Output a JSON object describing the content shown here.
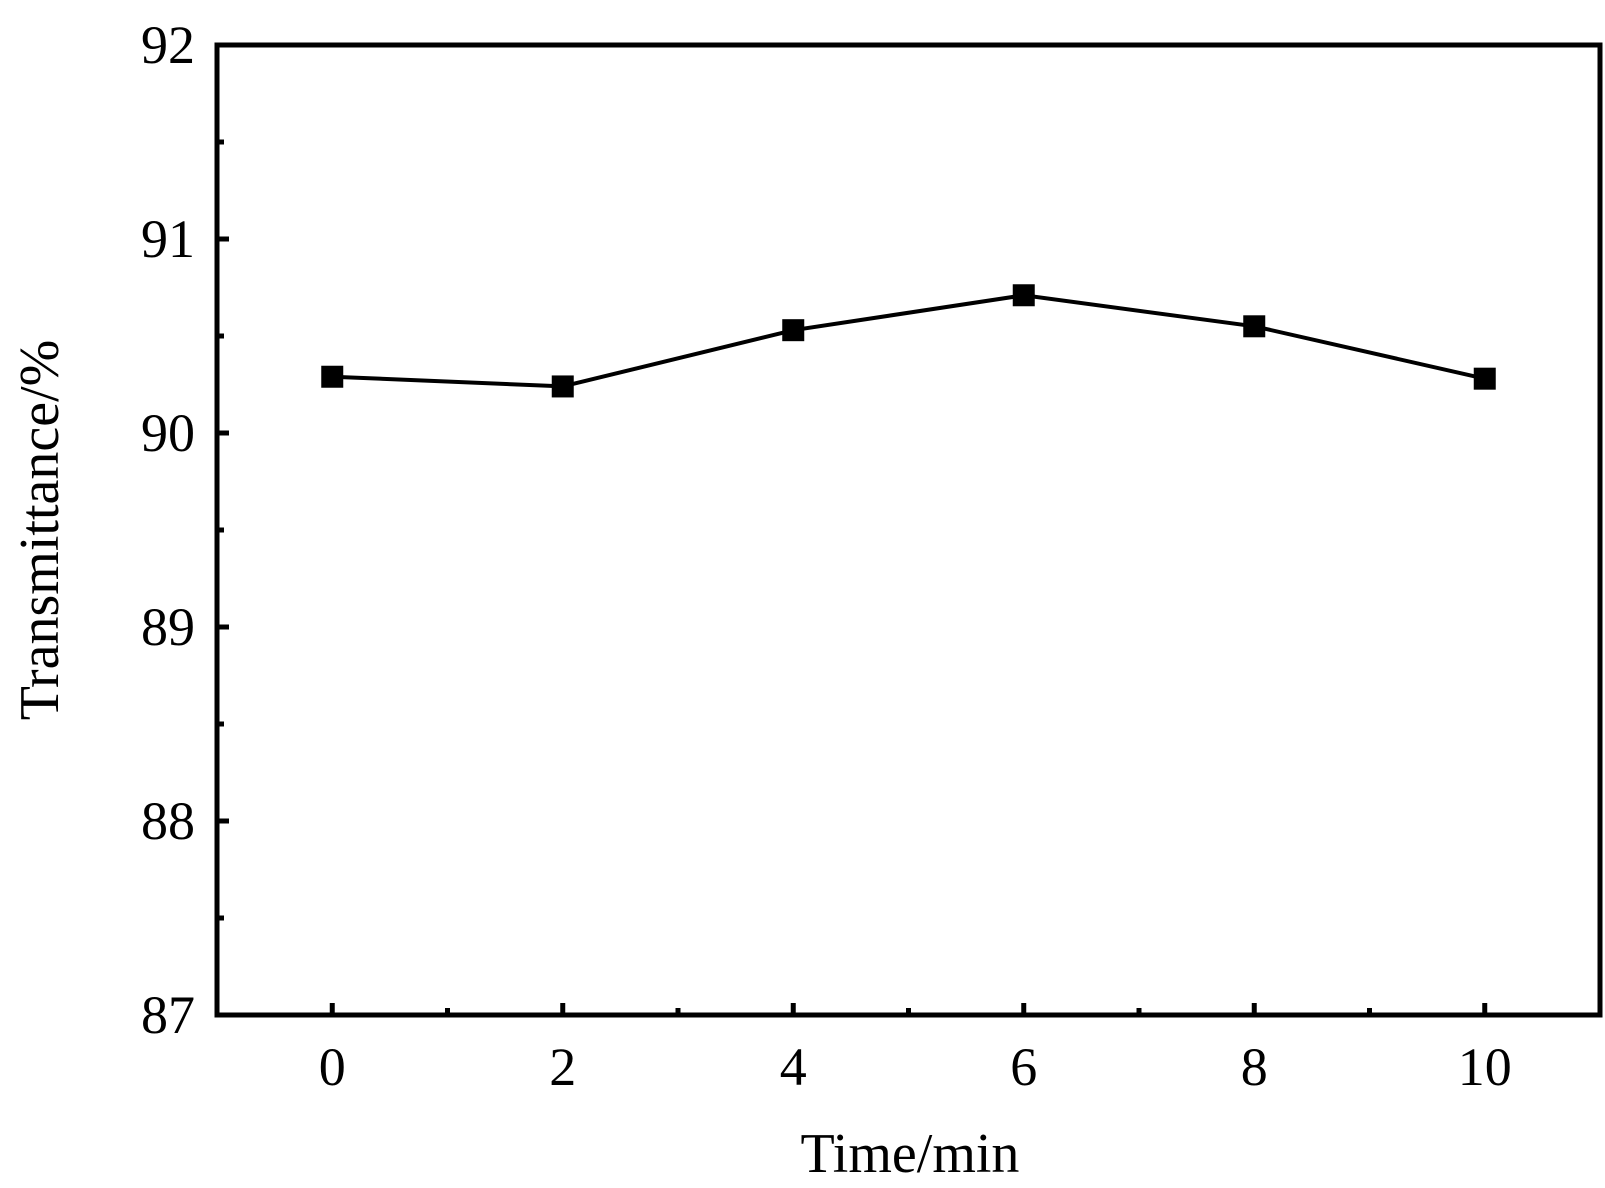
{
  "chart_data": {
    "type": "line",
    "title": "",
    "xlabel": "Time/min",
    "ylabel": "Transmittance/%",
    "x": [
      0,
      2,
      4,
      6,
      8,
      10
    ],
    "series": [
      {
        "values": [
          90.29,
          90.24,
          90.53,
          90.71,
          90.55,
          90.28
        ]
      }
    ],
    "xlim": [
      -1,
      11
    ],
    "ylim": [
      87,
      92
    ],
    "x_ticks": [
      "0",
      "2",
      "4",
      "6",
      "8",
      "10"
    ],
    "y_ticks": [
      "87",
      "88",
      "89",
      "90",
      "91",
      "92"
    ],
    "x_minor_ticks": [
      1,
      3,
      5,
      7,
      9
    ],
    "y_minor_ticks": [
      87.5,
      88.5,
      89.5,
      90.5,
      91.5
    ],
    "marker": "filled-square",
    "line_color": "#000000",
    "grid": false,
    "legend": "none"
  }
}
